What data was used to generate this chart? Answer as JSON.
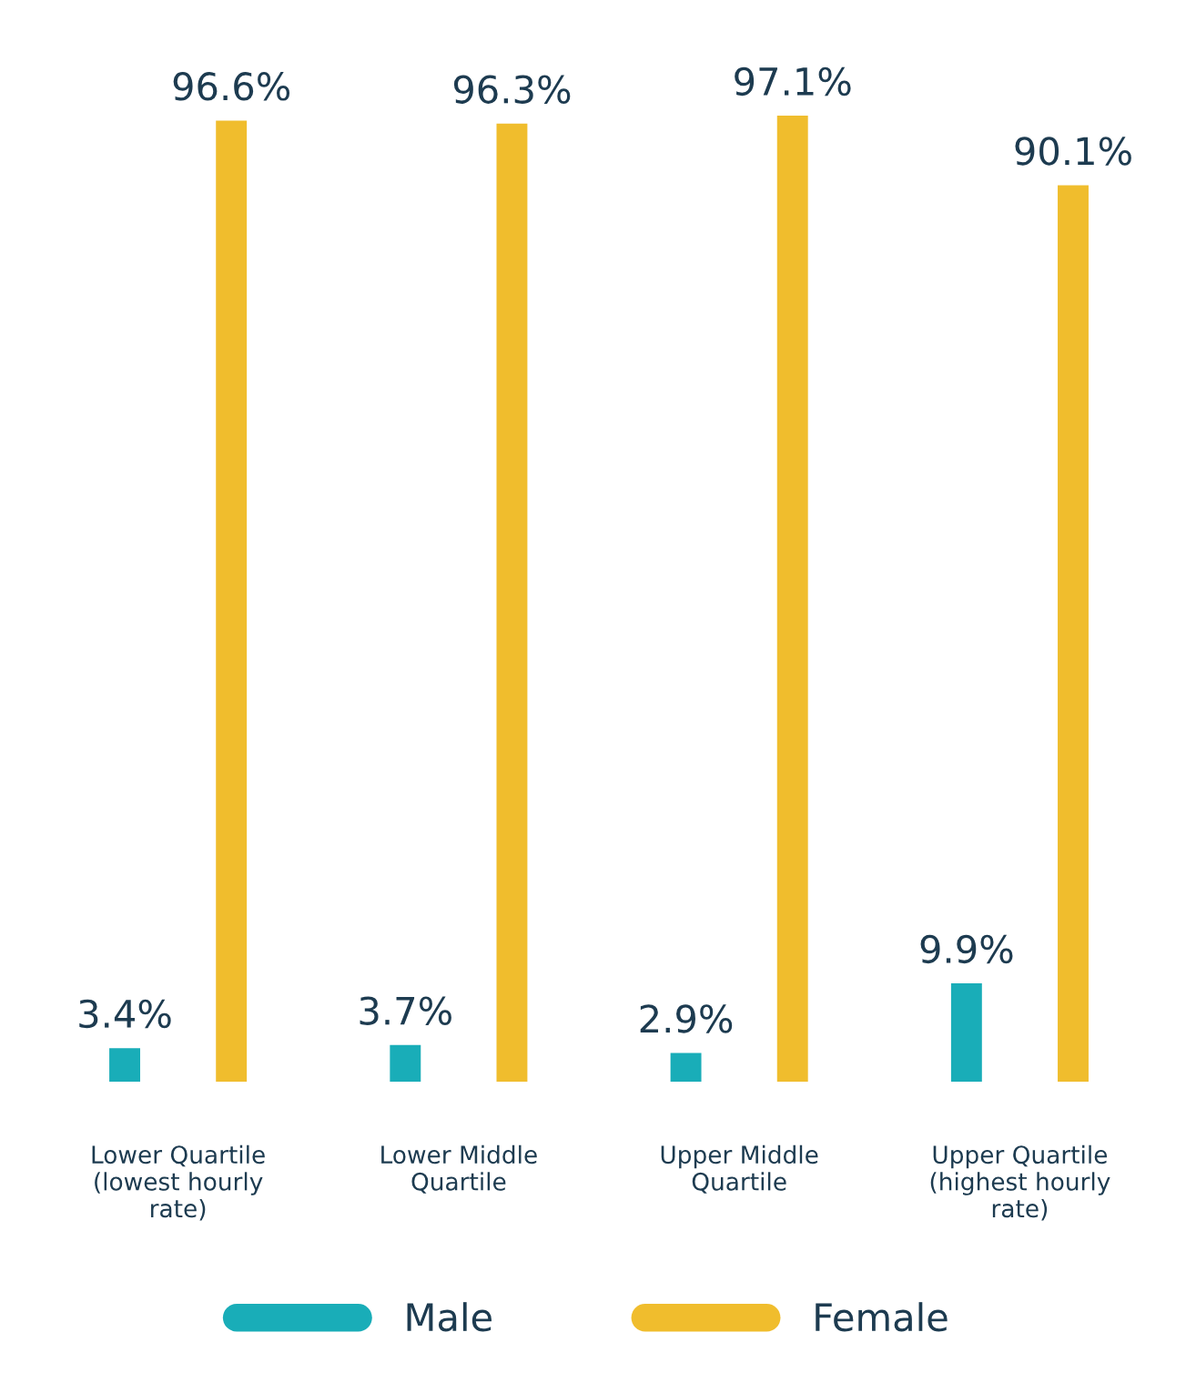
{
  "chart_data": {
    "type": "bar",
    "categories": [
      "Lower Quartile (lowest hourly rate)",
      "Lower Middle Quartile",
      "Upper Middle Quartile",
      "Upper Quartile (highest hourly rate)"
    ],
    "series": [
      {
        "name": "Male",
        "color": "#19adb8",
        "values": [
          3.4,
          3.7,
          2.9,
          9.9
        ],
        "value_labels": [
          "3.4%",
          "3.7%",
          "2.9%",
          "9.9%"
        ]
      },
      {
        "name": "Female",
        "color": "#f0bd2d",
        "values": [
          96.6,
          96.3,
          97.1,
          90.1
        ],
        "value_labels": [
          "96.6%",
          "96.3%",
          "97.1%",
          "90.1%"
        ]
      }
    ],
    "legend": "bottom"
  }
}
